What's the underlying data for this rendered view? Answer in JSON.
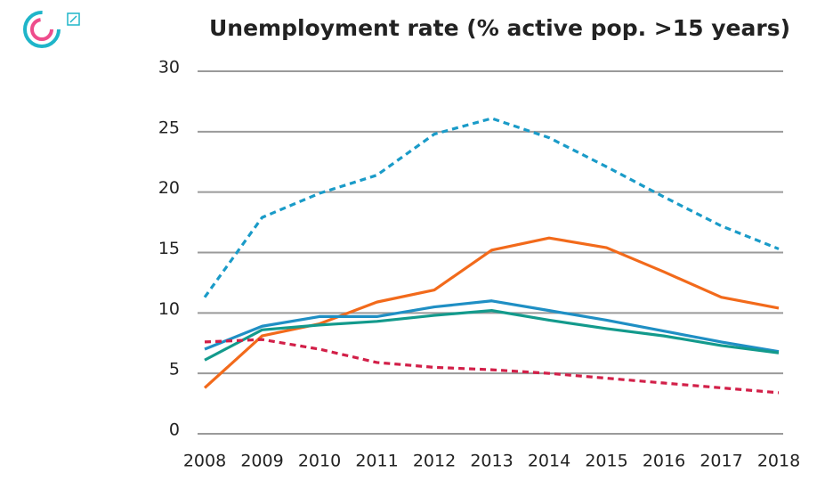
{
  "chart_data": {
    "type": "line",
    "title": "Unemployment rate (% active pop. >15 years)",
    "x": [
      2008,
      2009,
      2010,
      2011,
      2012,
      2013,
      2014,
      2015,
      2016,
      2017,
      2018
    ],
    "xlim": [
      2008,
      2018
    ],
    "xticks": [
      2008,
      2009,
      2010,
      2011,
      2012,
      2013,
      2014,
      2015,
      2016,
      2017,
      2018
    ],
    "ylim": [
      0,
      30
    ],
    "yticks": [
      0,
      5,
      10,
      15,
      20,
      25,
      30
    ],
    "grid": true,
    "series": [
      {
        "color": "#1a9bc8",
        "dashed": true,
        "values": [
          11.3,
          17.9,
          19.9,
          21.4,
          24.8,
          26.1,
          24.5,
          22.1,
          19.6,
          17.2,
          15.3
        ]
      },
      {
        "color": "#f26a1b",
        "dashed": false,
        "values": [
          3.8,
          8.1,
          9.1,
          10.9,
          11.9,
          15.2,
          16.2,
          15.4,
          13.4,
          11.3,
          10.4
        ]
      },
      {
        "color": "#1f8fc4",
        "dashed": false,
        "values": [
          7.0,
          8.9,
          9.7,
          9.7,
          10.5,
          11.0,
          10.2,
          9.4,
          8.5,
          7.6,
          6.8
        ]
      },
      {
        "color": "#139a8c",
        "dashed": false,
        "values": [
          6.1,
          8.6,
          9.0,
          9.3,
          9.8,
          10.2,
          9.4,
          8.7,
          8.1,
          7.3,
          6.7
        ]
      },
      {
        "color": "#d21f48",
        "dashed": true,
        "values": [
          7.6,
          7.8,
          7.0,
          5.9,
          5.5,
          5.3,
          5.0,
          4.6,
          4.2,
          3.8,
          3.4
        ]
      }
    ]
  }
}
